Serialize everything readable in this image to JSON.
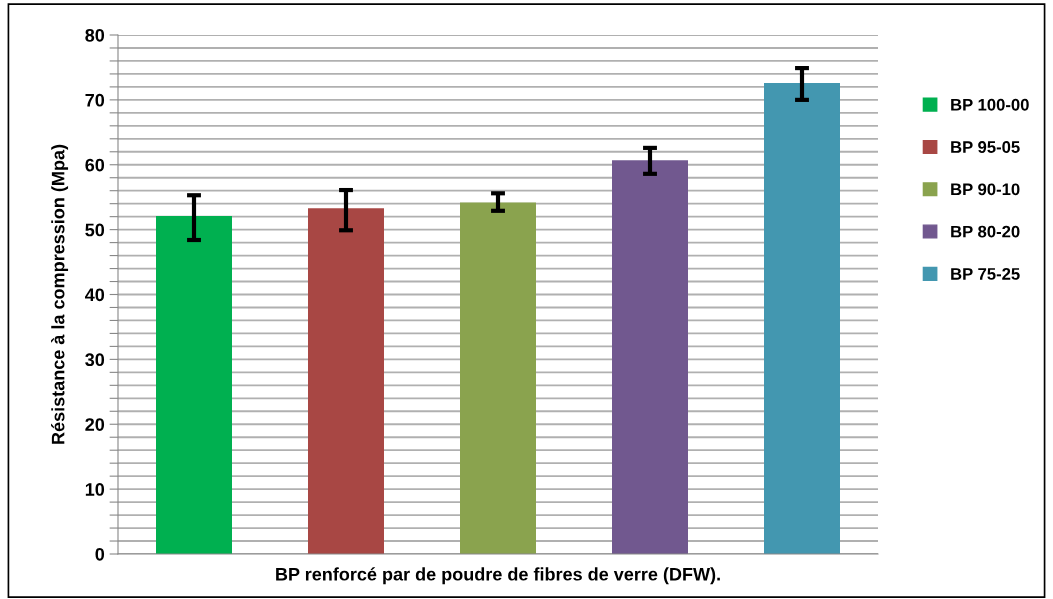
{
  "chart_data": {
    "type": "bar",
    "xlabel": "BP renforcé par de poudre de fibres de verre (DFW).",
    "ylabel": "Résistance à la compression (Mpa)",
    "categories": [
      null,
      null,
      null,
      null,
      null
    ],
    "series": [
      {
        "name": "BP 100-00",
        "color": "#00b050",
        "values": [
          52.1,
          null,
          null,
          null,
          null
        ],
        "errors": [
          [
            48.4,
            55.3
          ],
          null,
          null,
          null,
          null
        ]
      },
      {
        "name": "BP 95-05",
        "color": "#a84744",
        "values": [
          null,
          53.3,
          null,
          null,
          null
        ],
        "errors": [
          null,
          [
            49.9,
            56.1
          ],
          null,
          null,
          null
        ]
      },
      {
        "name": "BP 90-10",
        "color": "#8aa34e",
        "values": [
          null,
          null,
          54.2,
          null,
          null
        ],
        "errors": [
          null,
          null,
          [
            52.9,
            55.6
          ],
          null,
          null
        ]
      },
      {
        "name": "BP 80-20",
        "color": "#71588f",
        "values": [
          null,
          null,
          null,
          60.7,
          null
        ],
        "errors": [
          null,
          null,
          null,
          [
            58.6,
            62.6
          ],
          null
        ]
      },
      {
        "name": "BP 75-25",
        "color": "#4397b0",
        "values": [
          null,
          null,
          null,
          null,
          72.6
        ],
        "errors": [
          null,
          null,
          null,
          null,
          [
            70.0,
            74.9
          ]
        ]
      }
    ],
    "ylim": [
      0,
      80
    ],
    "yticks": [
      0,
      {
        "value": 2,
        "label": null
      },
      {
        "value": 4,
        "label": null
      },
      {
        "value": 6,
        "label": null
      },
      {
        "value": 8,
        "label": null
      },
      10,
      {
        "value": 12,
        "label": null
      },
      {
        "value": 14,
        "label": null
      },
      {
        "value": 16,
        "label": null
      },
      {
        "value": 18,
        "label": null
      },
      20,
      {
        "value": 22,
        "label": null
      },
      {
        "value": 24,
        "label": null
      },
      {
        "value": 26,
        "label": null
      },
      {
        "value": 28,
        "label": null
      },
      30,
      {
        "value": 32,
        "label": null
      },
      {
        "value": 34,
        "label": null
      },
      {
        "value": 36,
        "label": null
      },
      {
        "value": 38,
        "label": null
      },
      40,
      {
        "value": 42,
        "label": null
      },
      {
        "value": 44,
        "label": null
      },
      {
        "value": 46,
        "label": null
      },
      {
        "value": 48,
        "label": null
      },
      50,
      {
        "value": 52,
        "label": null
      },
      {
        "value": 54,
        "label": null
      },
      {
        "value": 56,
        "label": null
      },
      {
        "value": 58,
        "label": null
      },
      60,
      {
        "value": 62,
        "label": null
      },
      {
        "value": 64,
        "label": null
      },
      {
        "value": 66,
        "label": null
      },
      {
        "value": 68,
        "label": null
      },
      70,
      {
        "value": 72,
        "label": null
      },
      {
        "value": 74,
        "label": null
      },
      {
        "value": 76,
        "label": null
      },
      {
        "value": 78,
        "label": null
      },
      80
    ],
    "grid": "y",
    "legend": "right"
  }
}
